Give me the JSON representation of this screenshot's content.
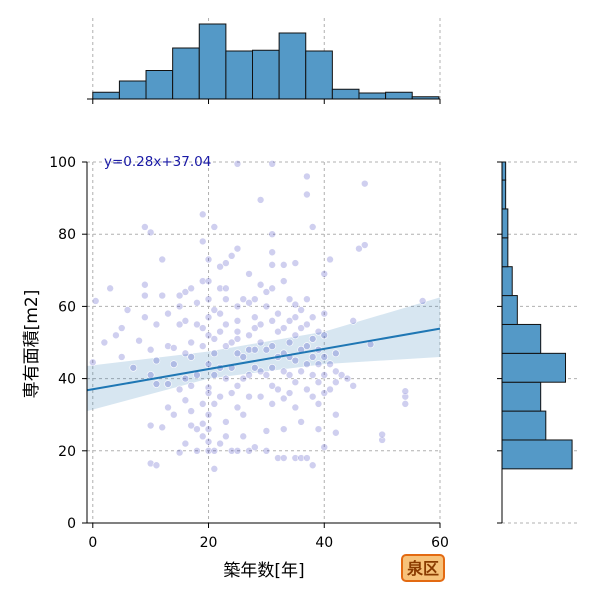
{
  "chart_data": {
    "type": "scatter",
    "subtype": "joint-plot-with-regression-and-marginal-histograms",
    "xlabel": "築年数[年]",
    "ylabel": "専有面積[m2]",
    "xlim": [
      -1,
      60
    ],
    "ylim": [
      0,
      100
    ],
    "x_ticks": [
      0,
      20,
      40,
      60
    ],
    "y_ticks": [
      0,
      20,
      40,
      60,
      80,
      100
    ],
    "grid": true,
    "regression": {
      "label": "y=0.28x+37.04",
      "slope": 0.28,
      "intercept": 37.04,
      "ci_upper": [
        [
          -1,
          43.5
        ],
        [
          20,
          47.5
        ],
        [
          40,
          53.0
        ],
        [
          60,
          62.5
        ]
      ],
      "ci_lower": [
        [
          -1,
          31.0
        ],
        [
          20,
          40.0
        ],
        [
          40,
          44.0
        ],
        [
          60,
          46.0
        ]
      ]
    },
    "points": [
      [
        0,
        44.5
      ],
      [
        0.5,
        61.5
      ],
      [
        2,
        50
      ],
      [
        3,
        65
      ],
      [
        4,
        52
      ],
      [
        5,
        46
      ],
      [
        5,
        54
      ],
      [
        6,
        59
      ],
      [
        7,
        43
      ],
      [
        8,
        50.5
      ],
      [
        9,
        57
      ],
      [
        9,
        63
      ],
      [
        9,
        66
      ],
      [
        9,
        82
      ],
      [
        10,
        27
      ],
      [
        10,
        41
      ],
      [
        10,
        48
      ],
      [
        10,
        80.5
      ],
      [
        10,
        16.5
      ],
      [
        11,
        16
      ],
      [
        11,
        38.5
      ],
      [
        11,
        45
      ],
      [
        11,
        55
      ],
      [
        12,
        26.5
      ],
      [
        12,
        63
      ],
      [
        12,
        73
      ],
      [
        13,
        32
      ],
      [
        13,
        38.5
      ],
      [
        13,
        49
      ],
      [
        13,
        58
      ],
      [
        14,
        44
      ],
      [
        14,
        48.5
      ],
      [
        14,
        30
      ],
      [
        15,
        37
      ],
      [
        15,
        55
      ],
      [
        15,
        60
      ],
      [
        15,
        63
      ],
      [
        15,
        19.5
      ],
      [
        16,
        22
      ],
      [
        16,
        34
      ],
      [
        16,
        40
      ],
      [
        16,
        47
      ],
      [
        16,
        56
      ],
      [
        16,
        64
      ],
      [
        17,
        27
      ],
      [
        17,
        31
      ],
      [
        17,
        38
      ],
      [
        17,
        46
      ],
      [
        17,
        50
      ],
      [
        17,
        65
      ],
      [
        18,
        20
      ],
      [
        18,
        26
      ],
      [
        18,
        41
      ],
      [
        18,
        55
      ],
      [
        18,
        61
      ],
      [
        19,
        24
      ],
      [
        19,
        27.5
      ],
      [
        19,
        33
      ],
      [
        19,
        49
      ],
      [
        19,
        54
      ],
      [
        19,
        67
      ],
      [
        19,
        78
      ],
      [
        19,
        85.5
      ],
      [
        20,
        20
      ],
      [
        20,
        26
      ],
      [
        20,
        30
      ],
      [
        20,
        37.5
      ],
      [
        20,
        44
      ],
      [
        20,
        52
      ],
      [
        20,
        57
      ],
      [
        20,
        62
      ],
      [
        20,
        67
      ],
      [
        20,
        73
      ],
      [
        20,
        36
      ],
      [
        20,
        22.5
      ],
      [
        21,
        15
      ],
      [
        21,
        20
      ],
      [
        21,
        33
      ],
      [
        21,
        41
      ],
      [
        21,
        47
      ],
      [
        21,
        51
      ],
      [
        21,
        59
      ],
      [
        21,
        82
      ],
      [
        22,
        22
      ],
      [
        22,
        35
      ],
      [
        22,
        43
      ],
      [
        22,
        53
      ],
      [
        22,
        58
      ],
      [
        22,
        65
      ],
      [
        22,
        71
      ],
      [
        23,
        24
      ],
      [
        23,
        28
      ],
      [
        23,
        40
      ],
      [
        23,
        49
      ],
      [
        23,
        55
      ],
      [
        23,
        62
      ],
      [
        23,
        65
      ],
      [
        23,
        72
      ],
      [
        24,
        20
      ],
      [
        24,
        36
      ],
      [
        24,
        43
      ],
      [
        24,
        50
      ],
      [
        24,
        74
      ],
      [
        25,
        20
      ],
      [
        25,
        32
      ],
      [
        25,
        38
      ],
      [
        25,
        47
      ],
      [
        25,
        51
      ],
      [
        25,
        53
      ],
      [
        25,
        56
      ],
      [
        25,
        60
      ],
      [
        25,
        76
      ],
      [
        25,
        99.5
      ],
      [
        26,
        24
      ],
      [
        26,
        30
      ],
      [
        26,
        40
      ],
      [
        26,
        46
      ],
      [
        26,
        62
      ],
      [
        27,
        20
      ],
      [
        27,
        35
      ],
      [
        27,
        41
      ],
      [
        27,
        48
      ],
      [
        27,
        52
      ],
      [
        27,
        61
      ],
      [
        27,
        69
      ],
      [
        28,
        21
      ],
      [
        28,
        43
      ],
      [
        28,
        48
      ],
      [
        28,
        54
      ],
      [
        28,
        57
      ],
      [
        28,
        62
      ],
      [
        29,
        35
      ],
      [
        29,
        42
      ],
      [
        29,
        50
      ],
      [
        29,
        55
      ],
      [
        29,
        66
      ],
      [
        29,
        89.5
      ],
      [
        30,
        20
      ],
      [
        30,
        25.5
      ],
      [
        30,
        41
      ],
      [
        30,
        48
      ],
      [
        30,
        60
      ],
      [
        30,
        64
      ],
      [
        31,
        33
      ],
      [
        31,
        38
      ],
      [
        31,
        43
      ],
      [
        31,
        49
      ],
      [
        31,
        56
      ],
      [
        31,
        65
      ],
      [
        31,
        71.5
      ],
      [
        31,
        75
      ],
      [
        31,
        80
      ],
      [
        31,
        99.5
      ],
      [
        32,
        18
      ],
      [
        32,
        37
      ],
      [
        32,
        46
      ],
      [
        32,
        53
      ],
      [
        32,
        58
      ],
      [
        33,
        18
      ],
      [
        33,
        26
      ],
      [
        33,
        34.5
      ],
      [
        33,
        42
      ],
      [
        33,
        47
      ],
      [
        33,
        54
      ],
      [
        33,
        67
      ],
      [
        33,
        71.5
      ],
      [
        34,
        36
      ],
      [
        34,
        41
      ],
      [
        34,
        46
      ],
      [
        34,
        50
      ],
      [
        34,
        56
      ],
      [
        34,
        62
      ],
      [
        35,
        18
      ],
      [
        35,
        32
      ],
      [
        35,
        39
      ],
      [
        35,
        45
      ],
      [
        35,
        52
      ],
      [
        35,
        57
      ],
      [
        35,
        60.5
      ],
      [
        35,
        72
      ],
      [
        36,
        18
      ],
      [
        36,
        28
      ],
      [
        36,
        42
      ],
      [
        36,
        48
      ],
      [
        36,
        54
      ],
      [
        36,
        59
      ],
      [
        37,
        18
      ],
      [
        37,
        37
      ],
      [
        37,
        44
      ],
      [
        37,
        49
      ],
      [
        37,
        55
      ],
      [
        37,
        62
      ],
      [
        37,
        91
      ],
      [
        37,
        96
      ],
      [
        38,
        16
      ],
      [
        38,
        35
      ],
      [
        38,
        41
      ],
      [
        38,
        46
      ],
      [
        38,
        51
      ],
      [
        38,
        57
      ],
      [
        38,
        82
      ],
      [
        39,
        26
      ],
      [
        39,
        33
      ],
      [
        39,
        39
      ],
      [
        39,
        44
      ],
      [
        39,
        48
      ],
      [
        39,
        53
      ],
      [
        40,
        21
      ],
      [
        40,
        36
      ],
      [
        40,
        41
      ],
      [
        40,
        46
      ],
      [
        40,
        52
      ],
      [
        40,
        58
      ],
      [
        40,
        69
      ],
      [
        41,
        37
      ],
      [
        41,
        44
      ],
      [
        41,
        73
      ],
      [
        42,
        25
      ],
      [
        42,
        30
      ],
      [
        42,
        39
      ],
      [
        42,
        42
      ],
      [
        42,
        47
      ],
      [
        43,
        41
      ],
      [
        44,
        40
      ],
      [
        45,
        38
      ],
      [
        45,
        56
      ],
      [
        46,
        76
      ],
      [
        47,
        77
      ],
      [
        47,
        94
      ],
      [
        48,
        49.5
      ],
      [
        50,
        23
      ],
      [
        50,
        24.5
      ],
      [
        54,
        33
      ],
      [
        54,
        35
      ],
      [
        54,
        36.5
      ],
      [
        57,
        61.5
      ]
    ],
    "top_histogram": {
      "bin_edges": [
        0,
        4.6,
        9.2,
        13.8,
        18.4,
        23,
        27.6,
        32.2,
        36.8,
        41.4,
        46,
        50.6,
        55.2,
        59.8
      ],
      "heights": [
        0.09,
        0.24,
        0.38,
        0.68,
        1.0,
        0.64,
        0.65,
        0.88,
        0.64,
        0.13,
        0.08,
        0.09,
        0.03
      ]
    },
    "right_histogram": {
      "bin_edges": [
        15,
        23,
        31,
        39,
        47,
        55,
        63,
        71,
        79,
        87,
        95,
        100
      ],
      "widths": [
        0.96,
        0.6,
        0.53,
        0.87,
        0.53,
        0.21,
        0.14,
        0.08,
        0.08,
        0.05,
        0.05
      ]
    },
    "badge": "泉区"
  }
}
